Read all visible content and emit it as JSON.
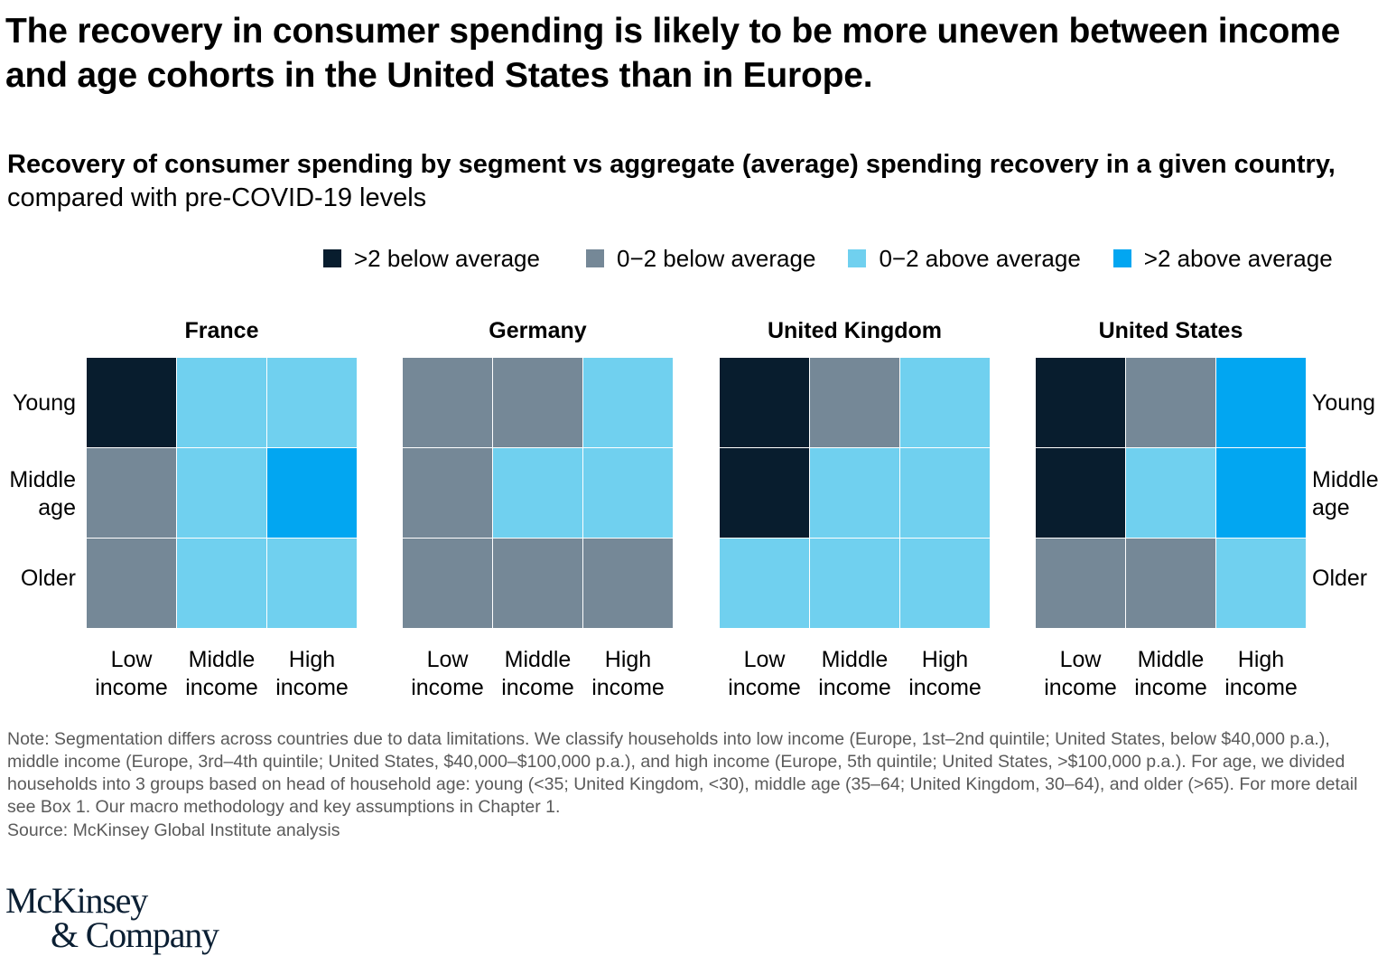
{
  "headline": "The recovery in consumer spending is likely to be more uneven between income and age cohorts in the United States than in Europe.",
  "subtitle": {
    "bold": "Recovery of consumer spending by segment vs aggregate (average) spending recovery in a given country,",
    "regular": " compared with pre-COVID-19 levels"
  },
  "legend": [
    {
      "key": "gt2_below",
      "label": ">2 below average",
      "color": "#081d2e"
    },
    {
      "key": "0_2_below",
      "label": "0−2 below average",
      "color": "#758897"
    },
    {
      "key": "0_2_above",
      "label": "0−2 above average",
      "color": "#70d0ef"
    },
    {
      "key": "gt2_above",
      "label": ">2 above average",
      "color": "#02a6f1"
    }
  ],
  "chart_data": {
    "type": "heatmap",
    "title": "Recovery of consumer spending by segment vs aggregate (average) spending recovery in a given country, compared with pre-COVID-19 levels",
    "row_labels": [
      [
        "Young"
      ],
      [
        "Middle",
        "age"
      ],
      [
        "Older"
      ]
    ],
    "rows": [
      "Young",
      "Middle age",
      "Older"
    ],
    "column_labels": [
      [
        "Low",
        "income"
      ],
      [
        "Middle",
        "income"
      ],
      [
        "High",
        "income"
      ]
    ],
    "columns": [
      "Low income",
      "Middle income",
      "High income"
    ],
    "categories": [
      "gt2_below",
      "0_2_below",
      "0_2_above",
      "gt2_above"
    ],
    "panels": [
      {
        "country": "France",
        "cells": [
          [
            "gt2_below",
            "0_2_above",
            "0_2_above"
          ],
          [
            "0_2_below",
            "0_2_above",
            "gt2_above"
          ],
          [
            "0_2_below",
            "0_2_above",
            "0_2_above"
          ]
        ]
      },
      {
        "country": "Germany",
        "cells": [
          [
            "0_2_below",
            "0_2_below",
            "0_2_above"
          ],
          [
            "0_2_below",
            "0_2_above",
            "0_2_above"
          ],
          [
            "0_2_below",
            "0_2_below",
            "0_2_below"
          ]
        ]
      },
      {
        "country": "United Kingdom",
        "cells": [
          [
            "gt2_below",
            "0_2_below",
            "0_2_above"
          ],
          [
            "gt2_below",
            "0_2_above",
            "0_2_above"
          ],
          [
            "0_2_above",
            "0_2_above",
            "0_2_above"
          ]
        ]
      },
      {
        "country": "United States",
        "cells": [
          [
            "gt2_below",
            "0_2_below",
            "gt2_above"
          ],
          [
            "gt2_below",
            "0_2_above",
            "gt2_above"
          ],
          [
            "0_2_below",
            "0_2_below",
            "0_2_above"
          ]
        ]
      }
    ],
    "legend_placement": "top-right"
  },
  "note": "Note: Segmentation differs across countries due to data limitations. We classify households into low income (Europe, 1st–2nd quintile; United States, below $40,000 p.a.), middle income (Europe, 3rd–4th quintile; United States, $40,000–$100,000 p.a.), and high income (Europe, 5th quintile; United States, >$100,000 p.a.). For age, we divided households into 3 groups based on head of household age: young (<35; United Kingdom, <30), middle age (35–64; United Kingdom, 30–64), and older (>65). For more detail see Box 1. Our macro methodology and key assumptions in Chapter 1.",
  "source": "Source: McKinsey Global Institute analysis",
  "logo": {
    "line1": "McKinsey",
    "line2": "& Company"
  }
}
